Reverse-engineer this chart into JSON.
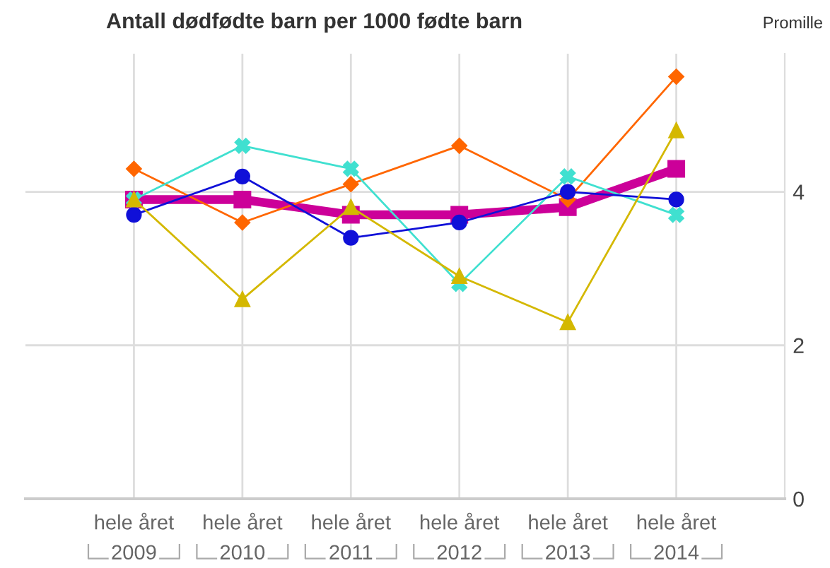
{
  "chart_data": {
    "type": "line",
    "title": "Antall dødfødte barn per 1000 fødte barn",
    "ylabel": "Promille",
    "categories": [
      "hele året",
      "hele året",
      "hele året",
      "hele året",
      "hele året",
      "hele året"
    ],
    "annotations": [
      "2009",
      "2010",
      "2011",
      "2012",
      "2013",
      "2014"
    ],
    "series": [
      {
        "color": "#ff6600",
        "marker": "diamond",
        "values": [
          4.3,
          3.6,
          4.1,
          4.6,
          3.9,
          5.5
        ]
      },
      {
        "color": "#40e0d0",
        "marker": "cross",
        "values": [
          3.9,
          4.6,
          4.3,
          2.8,
          4.2,
          3.7
        ]
      },
      {
        "color": "#1010d8",
        "marker": "circle",
        "values": [
          3.7,
          4.2,
          3.4,
          3.6,
          4.0,
          3.9
        ]
      },
      {
        "color": "#d4b800",
        "marker": "triangle",
        "values": [
          3.9,
          2.6,
          3.8,
          2.9,
          2.3,
          4.8
        ]
      },
      {
        "color": "#cc0099",
        "marker": "square",
        "values": [
          3.9,
          3.9,
          3.7,
          3.7,
          3.8,
          4.3
        ]
      }
    ],
    "ylim": [
      0,
      5.8
    ],
    "yticks": [
      0,
      2,
      4
    ],
    "grid": true,
    "line_style": "solid"
  }
}
